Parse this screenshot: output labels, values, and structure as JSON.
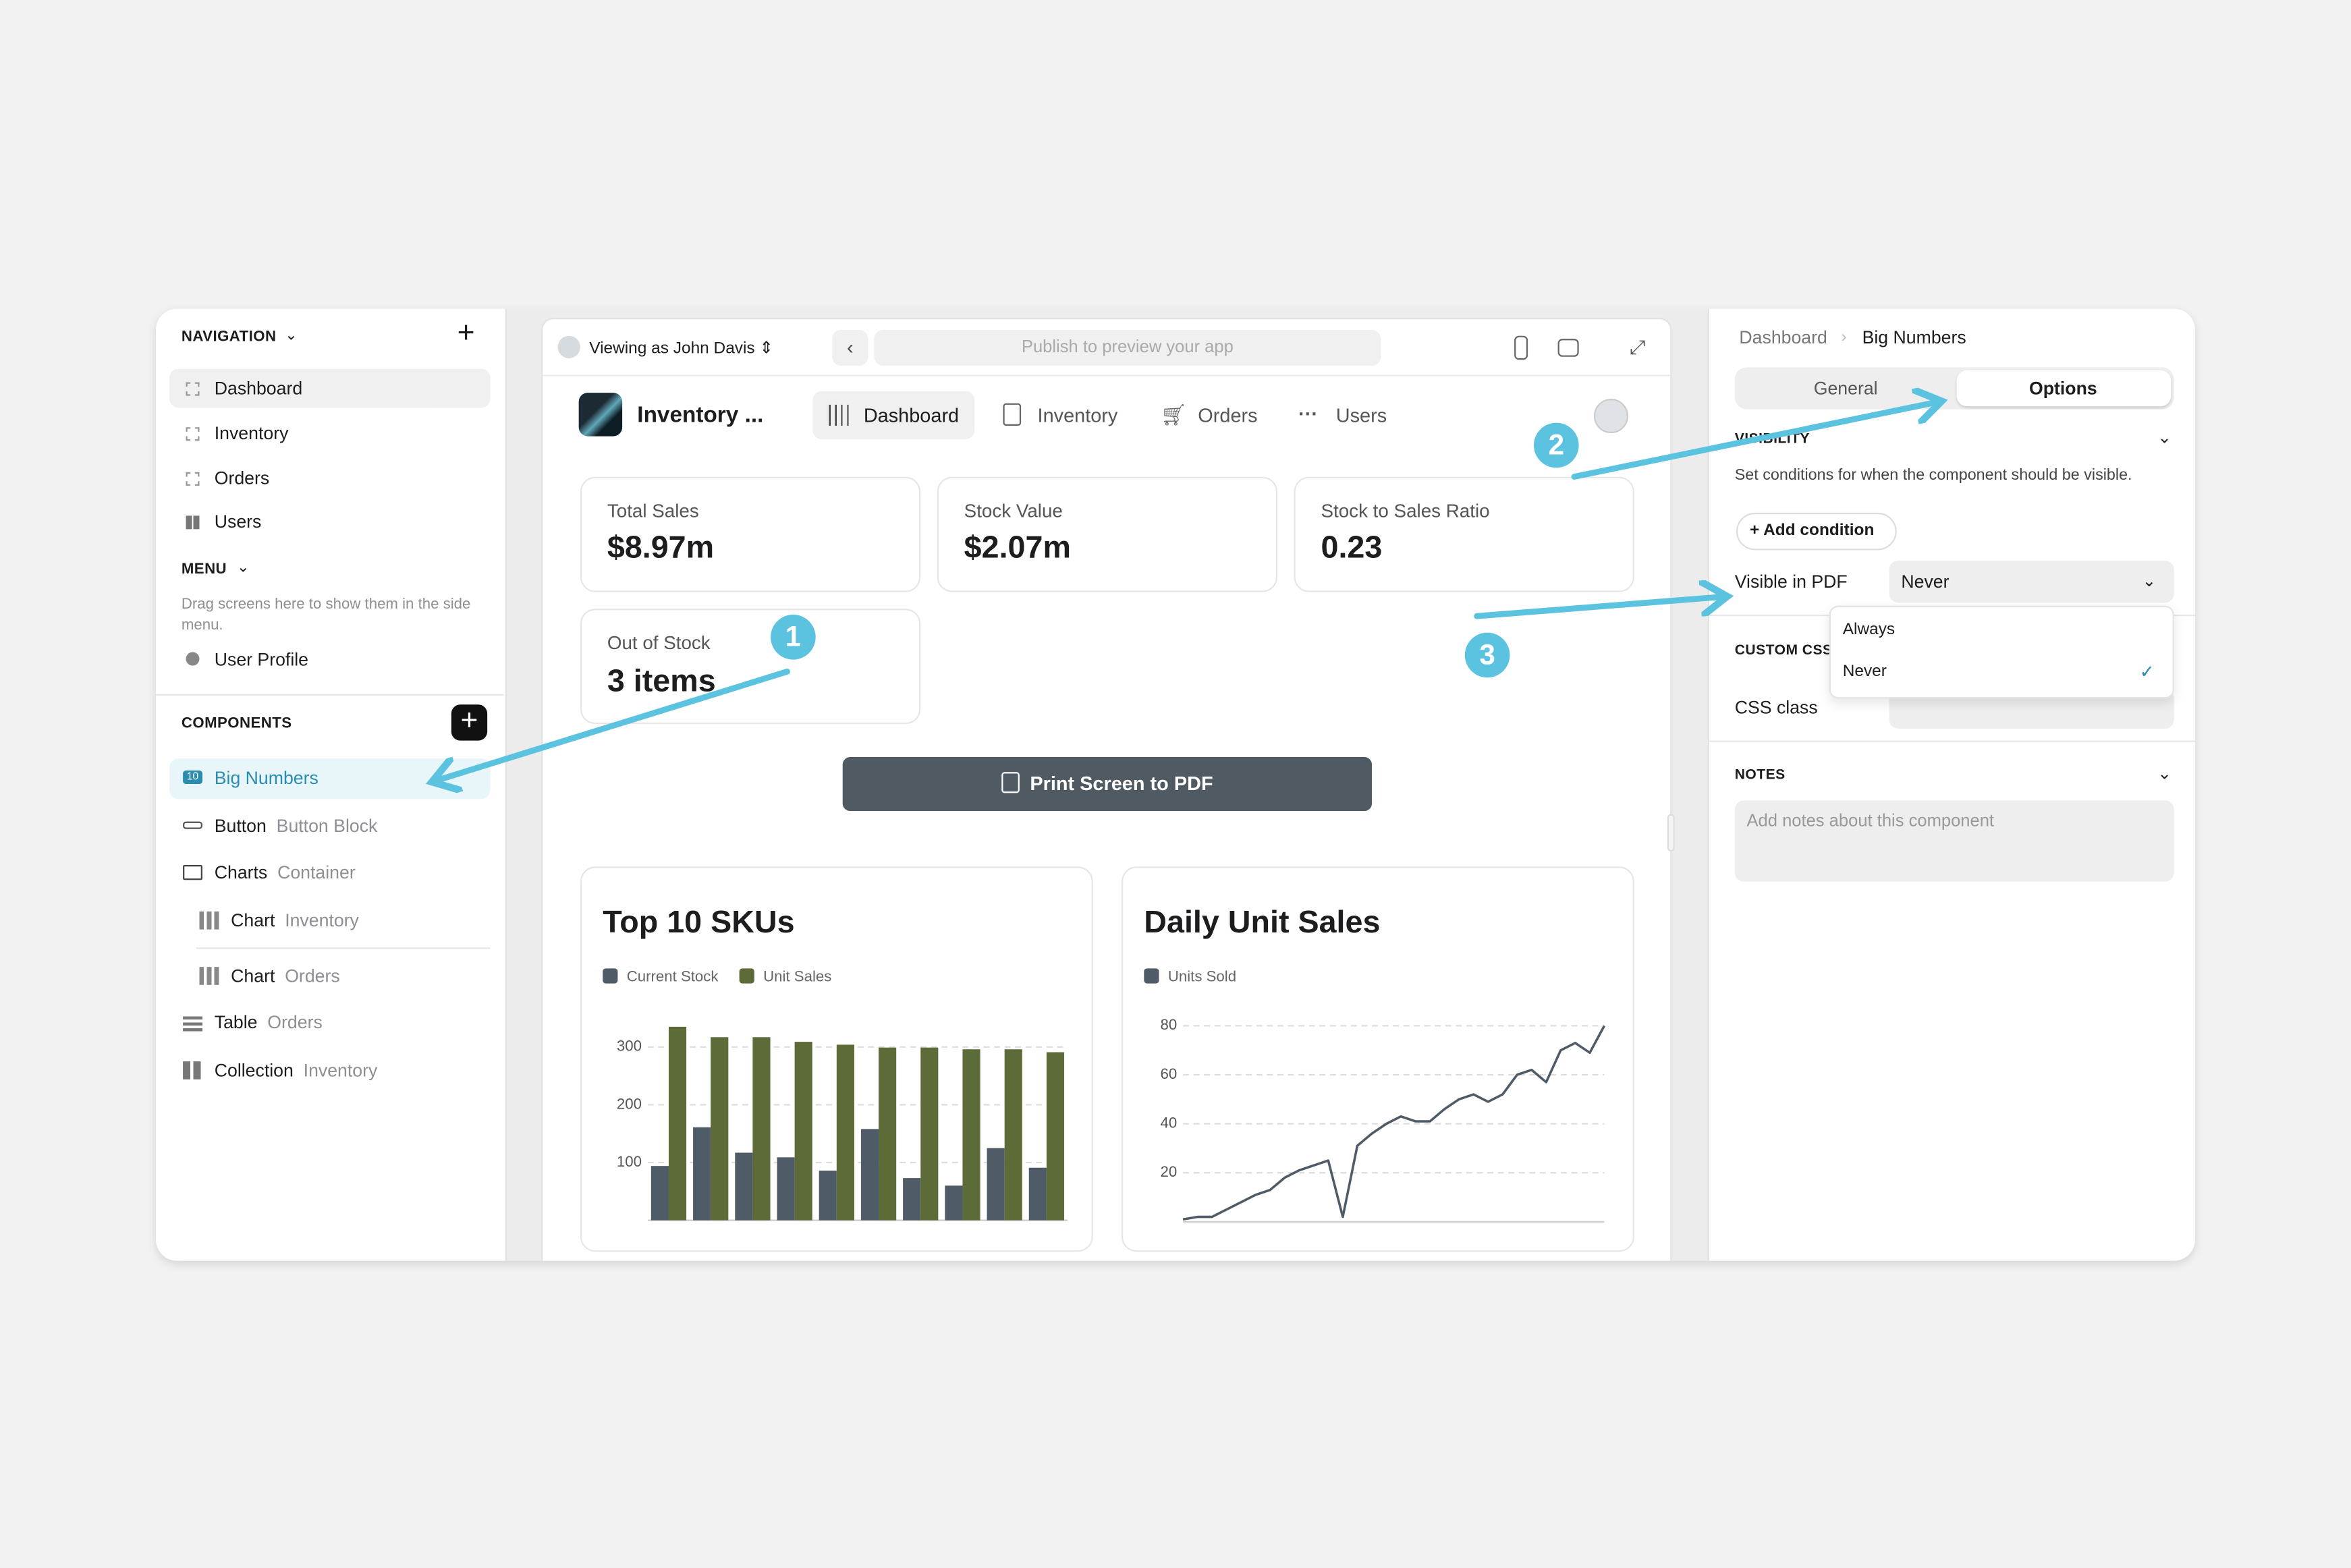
{
  "sidebar": {
    "navigation_title": "NAVIGATION",
    "nav_items": [
      "Dashboard",
      "Inventory",
      "Orders",
      "Users"
    ],
    "menu_title": "MENU",
    "menu_hint": "Drag screens here to show them in the side menu.",
    "menu_items": [
      "User Profile"
    ],
    "components_title": "COMPONENTS",
    "components": [
      {
        "name": "Big Numbers"
      },
      {
        "name": "Button",
        "detail": "Button Block"
      },
      {
        "name": "Charts",
        "detail": "Container"
      },
      {
        "name": "Chart",
        "detail": "Inventory"
      },
      {
        "name": "Chart",
        "detail": "Orders"
      },
      {
        "name": "Table",
        "detail": "Orders"
      },
      {
        "name": "Collection",
        "detail": "Inventory"
      }
    ]
  },
  "toolbar": {
    "viewing_as": "Viewing as John Davis",
    "url_placeholder": "Publish to preview your app"
  },
  "app": {
    "title": "Inventory ...",
    "tabs": [
      "Dashboard",
      "Inventory",
      "Orders",
      "Users"
    ],
    "big_numbers": [
      {
        "label": "Total Sales",
        "value": "$8.97m"
      },
      {
        "label": "Stock Value",
        "value": "$2.07m"
      },
      {
        "label": "Stock to Sales Ratio",
        "value": "0.23"
      },
      {
        "label": "Out of Stock",
        "value": "3 items"
      }
    ],
    "button": "Print Screen to PDF"
  },
  "chart_data": [
    {
      "type": "bar",
      "title": "Top 10 SKUs",
      "categories": [
        null,
        null,
        null,
        null,
        null,
        null,
        null,
        null,
        null,
        null
      ],
      "series": [
        {
          "name": "Current Stock",
          "color": "#4f5b66",
          "values": [
            94,
            161,
            117,
            109,
            86,
            158,
            73,
            60,
            125,
            91
          ]
        },
        {
          "name": "Unit Sales",
          "color": "#5c6b38",
          "values": [
            335,
            317,
            317,
            309,
            304,
            299,
            299,
            296,
            296,
            291
          ]
        }
      ],
      "ylim": [
        0,
        340
      ],
      "yticks": [
        100,
        200,
        300
      ],
      "grid": true
    },
    {
      "type": "line",
      "title": "Daily Unit Sales",
      "categories": [
        null,
        null,
        null,
        null,
        null,
        null,
        null,
        null,
        null,
        null,
        null,
        null,
        null,
        null,
        null,
        null,
        null,
        null,
        null,
        null,
        null,
        null,
        null,
        null,
        null,
        null,
        null,
        null,
        null,
        null
      ],
      "series": [
        {
          "name": "Units Sold",
          "color": "#4f5b66",
          "values": [
            1,
            2,
            2,
            5,
            8,
            11,
            13,
            18,
            21,
            23,
            25,
            2,
            31,
            36,
            40,
            43,
            41,
            41,
            46,
            50,
            52,
            49,
            52,
            60,
            62,
            57,
            70,
            73,
            69,
            80
          ]
        }
      ],
      "ylim": [
        0,
        82
      ],
      "yticks": [
        20,
        40,
        60,
        80
      ],
      "grid": true
    }
  ],
  "properties": {
    "breadcrumb": [
      "Dashboard",
      "Big Numbers"
    ],
    "tabs": [
      "General",
      "Options"
    ],
    "visibility_title": "VISIBILITY",
    "visibility_hint": "Set conditions for when the component should be visible.",
    "add_condition": "Add condition",
    "visible_in_pdf_label": "Visible in PDF",
    "visible_in_pdf_value": "Never",
    "visible_in_pdf_options": [
      "Always",
      "Never"
    ],
    "custom_css_title": "CUSTOM CSS",
    "css_class_label": "CSS class",
    "notes_title": "NOTES",
    "notes_placeholder": "Add notes about this component"
  },
  "annotations": [
    "1",
    "2",
    "3"
  ]
}
